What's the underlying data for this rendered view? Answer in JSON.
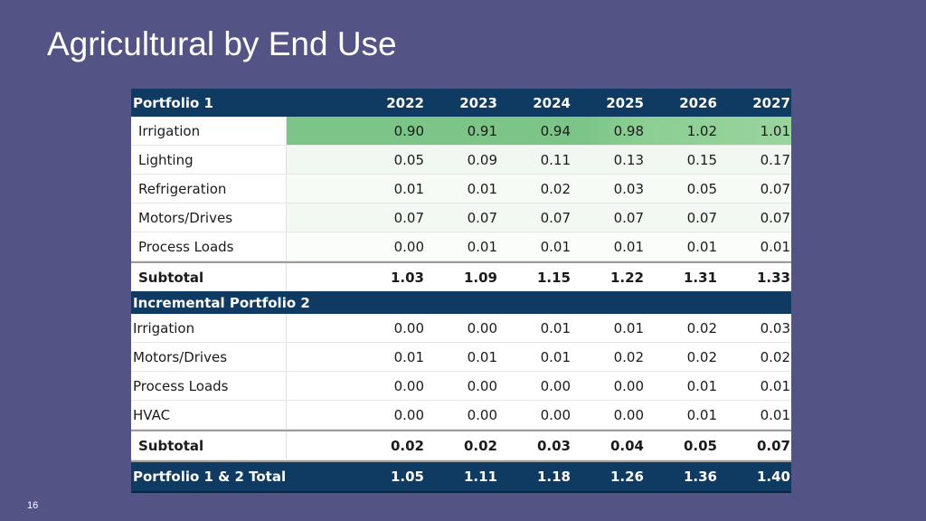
{
  "slide": {
    "title": "Agricultural by End Use",
    "page_number": "16"
  },
  "table": {
    "header": {
      "label": "Portfolio 1",
      "years": [
        "2022",
        "2023",
        "2024",
        "2025",
        "2026",
        "2027"
      ]
    },
    "portfolio1": {
      "rows": [
        {
          "label": "Irrigation",
          "values": [
            "0.90",
            "0.91",
            "0.94",
            "0.98",
            "1.02",
            "1.01"
          ]
        },
        {
          "label": "Lighting",
          "values": [
            "0.05",
            "0.09",
            "0.11",
            "0.13",
            "0.15",
            "0.17"
          ]
        },
        {
          "label": "Refrigeration",
          "values": [
            "0.01",
            "0.01",
            "0.02",
            "0.03",
            "0.05",
            "0.07"
          ]
        },
        {
          "label": "Motors/Drives",
          "values": [
            "0.07",
            "0.07",
            "0.07",
            "0.07",
            "0.07",
            "0.07"
          ]
        },
        {
          "label": "Process Loads",
          "values": [
            "0.00",
            "0.01",
            "0.01",
            "0.01",
            "0.01",
            "0.01"
          ]
        }
      ],
      "subtotal": {
        "label": "Subtotal",
        "values": [
          "1.03",
          "1.09",
          "1.15",
          "1.22",
          "1.31",
          "1.33"
        ]
      }
    },
    "portfolio2": {
      "label": "Incremental Portfolio 2",
      "rows": [
        {
          "label": "Irrigation",
          "values": [
            "0.00",
            "0.00",
            "0.01",
            "0.01",
            "0.02",
            "0.03"
          ]
        },
        {
          "label": "Motors/Drives",
          "values": [
            "0.01",
            "0.01",
            "0.01",
            "0.02",
            "0.02",
            "0.02"
          ]
        },
        {
          "label": "Process Loads",
          "values": [
            "0.00",
            "0.00",
            "0.00",
            "0.00",
            "0.01",
            "0.01"
          ]
        },
        {
          "label": "HVAC",
          "values": [
            "0.00",
            "0.00",
            "0.00",
            "0.00",
            "0.01",
            "0.01"
          ]
        }
      ],
      "subtotal": {
        "label": "Subtotal",
        "values": [
          "0.02",
          "0.02",
          "0.03",
          "0.04",
          "0.05",
          "0.07"
        ]
      }
    },
    "total": {
      "label": "Portfolio 1 & 2 Total",
      "values": [
        "1.05",
        "1.11",
        "1.18",
        "1.26",
        "1.36",
        "1.40"
      ]
    }
  }
}
